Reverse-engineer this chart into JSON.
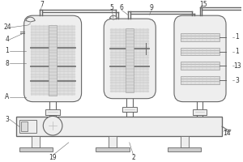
{
  "lc": "#666666",
  "fc": "#eeeeee",
  "gc": "#bbbbbb",
  "dark": "#888888",
  "white": "#ffffff"
}
